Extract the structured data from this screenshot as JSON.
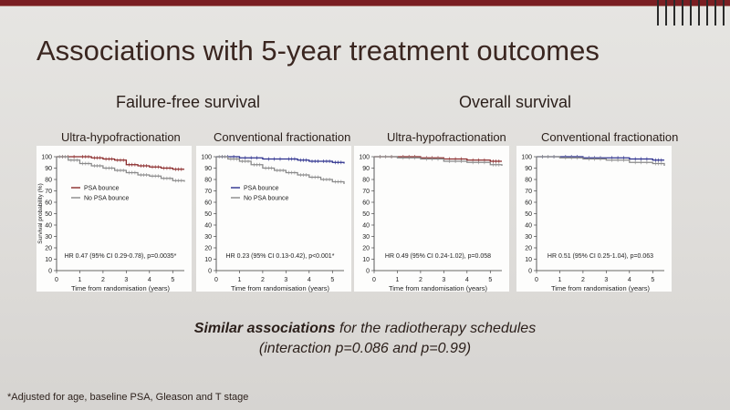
{
  "title": "Associations with 5-year treatment outcomes",
  "sections": {
    "ffs": "Failure-free survival",
    "os": "Overall survival"
  },
  "note": {
    "bold_part": "Similar associations",
    "line1_rest": " for the radiotherapy schedules",
    "line2": "(interaction p=0.086 and p=0.99)"
  },
  "footnote": "*Adjusted for age, baseline PSA, Gleason and T stage",
  "colors": {
    "psa_bounce_uhf": "#8a2a2a",
    "psa_bounce_conv": "#2b2f8c",
    "no_psa_bounce": "#8a8a8a"
  },
  "chart_data": [
    {
      "type": "line",
      "title": "Ultra-hypofractionation",
      "xlabel": "Time from randomisation (years)",
      "ylabel": "Survival probability (%)",
      "xlim": [
        0,
        5.5
      ],
      "ylim": [
        0,
        100
      ],
      "xticks": [
        "0",
        "1",
        "2",
        "3",
        "4",
        "5"
      ],
      "yticks": [
        "0",
        "10",
        "20",
        "30",
        "40",
        "50",
        "60",
        "70",
        "80",
        "90",
        "100"
      ],
      "legend": [
        "PSA bounce",
        "No PSA bounce"
      ],
      "annotation": "HR 0.47 (95% CI 0.29-0.78), p=0.0035*",
      "series": [
        {
          "name": "PSA bounce",
          "color": "#8a2a2a",
          "x": [
            0,
            1,
            1.5,
            2,
            2.5,
            3,
            3.5,
            4,
            4.5,
            5,
            5.5
          ],
          "y": [
            100,
            100,
            99,
            98,
            97,
            93,
            92,
            91,
            90,
            89,
            89
          ]
        },
        {
          "name": "No PSA bounce",
          "color": "#8a8a8a",
          "x": [
            0,
            0.5,
            1,
            1.5,
            2,
            2.5,
            3,
            3.5,
            4,
            4.5,
            5,
            5.5
          ],
          "y": [
            100,
            97,
            94,
            92,
            90,
            88,
            86,
            84,
            83,
            81,
            79,
            78
          ]
        }
      ]
    },
    {
      "type": "line",
      "title": "Conventional fractionation",
      "xlabel": "Time from randomisation (years)",
      "ylabel": "",
      "xlim": [
        0,
        5.5
      ],
      "ylim": [
        0,
        100
      ],
      "xticks": [
        "0",
        "1",
        "2",
        "3",
        "4",
        "5"
      ],
      "yticks": [
        "0",
        "10",
        "20",
        "30",
        "40",
        "50",
        "60",
        "70",
        "80",
        "90",
        "100"
      ],
      "legend": [
        "PSA bounce",
        "No PSA bounce"
      ],
      "annotation": "HR 0.23 (95% CI 0.13-0.42), p<0.001*",
      "series": [
        {
          "name": "PSA bounce",
          "color": "#2b2f8c",
          "x": [
            0,
            1,
            2,
            3,
            3.5,
            4,
            4.5,
            5,
            5.5
          ],
          "y": [
            100,
            99,
            98,
            98,
            97,
            96,
            96,
            95,
            94
          ]
        },
        {
          "name": "No PSA bounce",
          "color": "#8a8a8a",
          "x": [
            0,
            0.5,
            1,
            1.5,
            2,
            2.5,
            3,
            3.5,
            4,
            4.5,
            5,
            5.5
          ],
          "y": [
            100,
            98,
            96,
            93,
            90,
            88,
            86,
            84,
            82,
            80,
            78,
            76
          ]
        }
      ]
    },
    {
      "type": "line",
      "title": "Ultra-hypofractionation",
      "xlabel": "Time from randomisation (years)",
      "ylabel": "",
      "xlim": [
        0,
        5.5
      ],
      "ylim": [
        0,
        100
      ],
      "xticks": [
        "0",
        "1",
        "2",
        "3",
        "4",
        "5"
      ],
      "yticks": [
        "0",
        "10",
        "20",
        "30",
        "40",
        "50",
        "60",
        "70",
        "80",
        "90",
        "100"
      ],
      "legend": [],
      "annotation": "HR 0.49 (95% CI 0.24-1.02), p=0.058",
      "series": [
        {
          "name": "PSA bounce",
          "color": "#8a2a2a",
          "x": [
            0,
            1,
            2,
            3,
            4,
            5,
            5.5
          ],
          "y": [
            100,
            100,
            99,
            98,
            97,
            96,
            96
          ]
        },
        {
          "name": "No PSA bounce",
          "color": "#8a8a8a",
          "x": [
            0,
            1,
            2,
            3,
            4,
            5,
            5.5
          ],
          "y": [
            100,
            99,
            98,
            96,
            95,
            93,
            92
          ]
        }
      ]
    },
    {
      "type": "line",
      "title": "Conventional fractionation",
      "xlabel": "Time from randomisation (years)",
      "ylabel": "",
      "xlim": [
        0,
        5.5
      ],
      "ylim": [
        0,
        100
      ],
      "xticks": [
        "0",
        "1",
        "2",
        "3",
        "4",
        "5"
      ],
      "yticks": [
        "0",
        "10",
        "20",
        "30",
        "40",
        "50",
        "60",
        "70",
        "80",
        "90",
        "100"
      ],
      "legend": [],
      "annotation": "HR 0.51 (95% CI 0.25-1.04), p=0.063",
      "series": [
        {
          "name": "PSA bounce",
          "color": "#2b2f8c",
          "x": [
            0,
            1,
            2,
            3,
            4,
            5,
            5.5
          ],
          "y": [
            100,
            100,
            99,
            99,
            98,
            97,
            97
          ]
        },
        {
          "name": "No PSA bounce",
          "color": "#8a8a8a",
          "x": [
            0,
            1,
            2,
            3,
            4,
            5,
            5.5
          ],
          "y": [
            100,
            99,
            98,
            97,
            95,
            94,
            92
          ]
        }
      ]
    }
  ]
}
